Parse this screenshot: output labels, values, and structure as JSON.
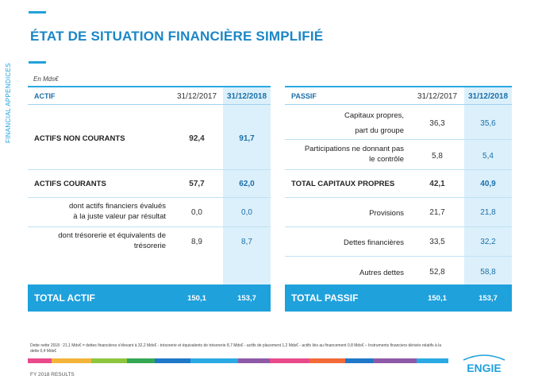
{
  "title": "ÉTAT DE SITUATION FINANCIÈRE  SIMPLIFIÉ",
  "side_label": "FINANCIAL APPENDICES",
  "unit": "En Mds€",
  "actif": {
    "header": {
      "label": "ACTIF",
      "col1": "31/12/2017",
      "col2": "31/12/2018"
    },
    "rows": [
      {
        "label": "ACTIFS NON COURANTS",
        "v1": "92,4",
        "v2": "91,7"
      },
      {
        "label": "ACTIFS COURANTS",
        "v1": "57,7",
        "v2": "62,0"
      },
      {
        "label1": "dont actifs financiers évalués",
        "label2": "à la juste valeur par résultat",
        "v1": "0,0",
        "v2": "0,0"
      },
      {
        "label1": "dont trésorerie  et équivalents de",
        "label2": "trésorerie",
        "v1": "8,9",
        "v2": "8,7"
      }
    ],
    "total": {
      "label": "TOTAL ACTIF",
      "v1": "150,1",
      "v2": "153,7"
    }
  },
  "passif": {
    "header": {
      "label": "PASSIF",
      "col1": "31/12/2017",
      "col2": "31/12/2018"
    },
    "rows": [
      {
        "label1": "Capitaux propres,",
        "label2": "part du groupe",
        "v1": "36,3",
        "v2": "35,6"
      },
      {
        "label1": "Participations ne donnant pas",
        "label2": "le contrôle",
        "v1": "5,8",
        "v2": "5,4"
      },
      {
        "label": "TOTAL CAPITAUX PROPRES",
        "v1": "42,1",
        "v2": "40,9"
      },
      {
        "label": "Provisions",
        "v1": "21,7",
        "v2": "21,8"
      },
      {
        "label": "Dettes financières",
        "v1": "33,5",
        "v2": "32,2"
      },
      {
        "label": "Autres dettes",
        "v1": "52,8",
        "v2": "58,8"
      }
    ],
    "total": {
      "label": "TOTAL PASSIF",
      "v1": "150,1",
      "v2": "153,7"
    }
  },
  "footnote": "Dette nette 2018 : 21,1  Mds€ = dettes  financières  s'élevant  à 32,2  Mds€ - trésorerie  et équivalents  de trésorerie  8,7  Mds€ - actifs de placement  1,2 Mds€ - actifs liés au financement  0,8  Mds€ – Instruments  financiers  dérivés  relatifs  à la dette  0,4  Mds€",
  "footer": "FY 2018 RESULTS",
  "logo_text": "ENGIE",
  "strip_colors": [
    "#e84a8c",
    "#f4b43a",
    "#8cc63f",
    "#34a853",
    "#1f78c8",
    "#2aa9e2",
    "#8e5aa8",
    "#e84a8c",
    "#f26b38",
    "#1f78c8",
    "#8e5aa8",
    "#2aa9e2"
  ]
}
